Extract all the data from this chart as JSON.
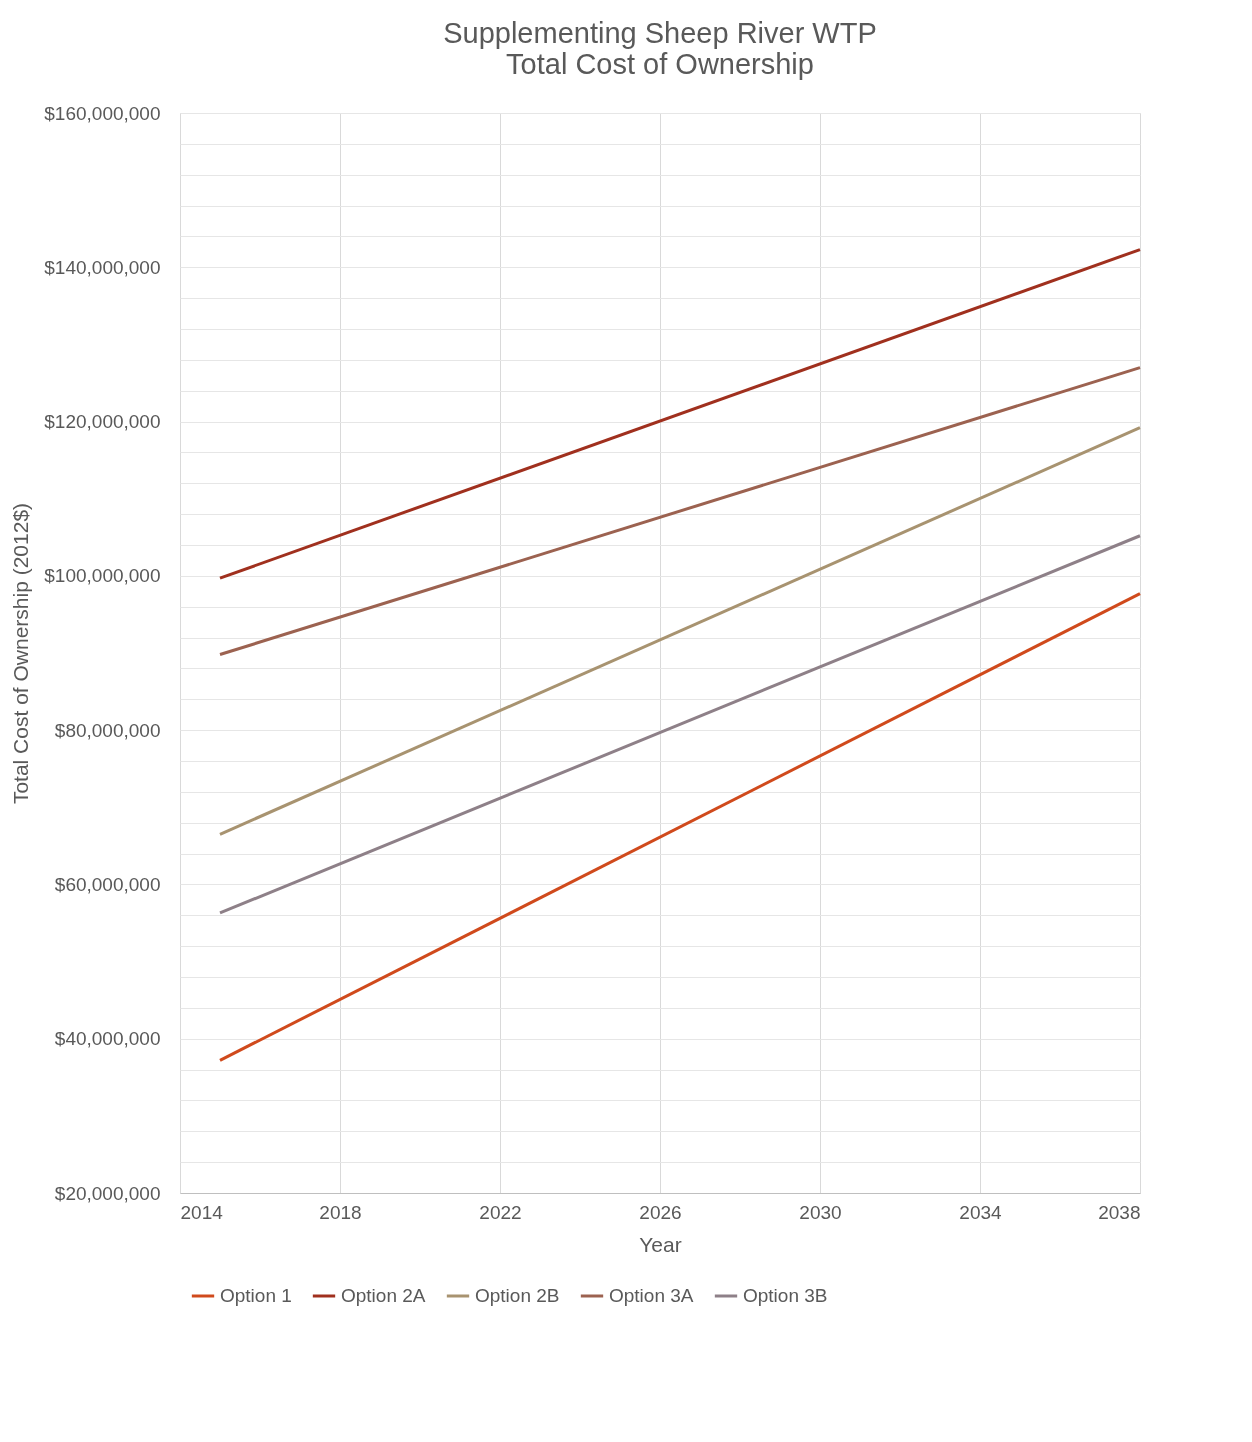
{
  "chart_data": {
    "type": "line",
    "title": [
      "Supplementing Sheep River WTP",
      "Total Cost of Ownership"
    ],
    "xlabel": "Year",
    "ylabel": "Total Cost of Ownership (2012$)",
    "x": [
      2015,
      2038
    ],
    "series": [
      {
        "name": "Option 1",
        "color": "#d04a1c",
        "values": [
          37200000,
          97700000
        ]
      },
      {
        "name": "Option 2A",
        "color": "#a0301e",
        "values": [
          99700000,
          142300000
        ]
      },
      {
        "name": "Option 2B",
        "color": "#a89370",
        "values": [
          66500000,
          119200000
        ]
      },
      {
        "name": "Option 3A",
        "color": "#9c6250",
        "values": [
          89800000,
          127000000
        ]
      },
      {
        "name": "Option 3B",
        "color": "#8e8088",
        "values": [
          56300000,
          105200000
        ]
      }
    ],
    "xlim": [
      2014,
      2038
    ],
    "xticks": [
      2014,
      2018,
      2022,
      2026,
      2030,
      2034,
      2038
    ],
    "ylim": [
      20000000,
      160000000
    ],
    "yticks": [
      {
        "value": 20000000,
        "label": "$20,000,000"
      },
      {
        "value": 24000000,
        "label": null
      },
      {
        "value": 28000000,
        "label": null
      },
      {
        "value": 32000000,
        "label": null
      },
      {
        "value": 36000000,
        "label": null
      },
      {
        "value": 40000000,
        "label": "$40,000,000"
      },
      {
        "value": 44000000,
        "label": null
      },
      {
        "value": 48000000,
        "label": null
      },
      {
        "value": 52000000,
        "label": null
      },
      {
        "value": 56000000,
        "label": null
      },
      {
        "value": 60000000,
        "label": "$60,000,000"
      },
      {
        "value": 64000000,
        "label": null
      },
      {
        "value": 68000000,
        "label": null
      },
      {
        "value": 72000000,
        "label": null
      },
      {
        "value": 76000000,
        "label": null
      },
      {
        "value": 80000000,
        "label": "$80,000,000"
      },
      {
        "value": 84000000,
        "label": null
      },
      {
        "value": 88000000,
        "label": null
      },
      {
        "value": 92000000,
        "label": null
      },
      {
        "value": 96000000,
        "label": null
      },
      {
        "value": 100000000,
        "label": "$100,000,000"
      },
      {
        "value": 104000000,
        "label": null
      },
      {
        "value": 108000000,
        "label": null
      },
      {
        "value": 112000000,
        "label": null
      },
      {
        "value": 116000000,
        "label": null
      },
      {
        "value": 120000000,
        "label": "$120,000,000"
      },
      {
        "value": 124000000,
        "label": null
      },
      {
        "value": 128000000,
        "label": null
      },
      {
        "value": 132000000,
        "label": null
      },
      {
        "value": 136000000,
        "label": null
      },
      {
        "value": 140000000,
        "label": "$140,000,000"
      },
      {
        "value": 144000000,
        "label": null
      },
      {
        "value": 148000000,
        "label": null
      },
      {
        "value": 152000000,
        "label": null
      },
      {
        "value": 156000000,
        "label": null
      },
      {
        "value": 160000000,
        "label": "$160,000,000"
      }
    ],
    "grid": true,
    "legend": "bottom",
    "marker": "none",
    "line_style": "solid"
  }
}
